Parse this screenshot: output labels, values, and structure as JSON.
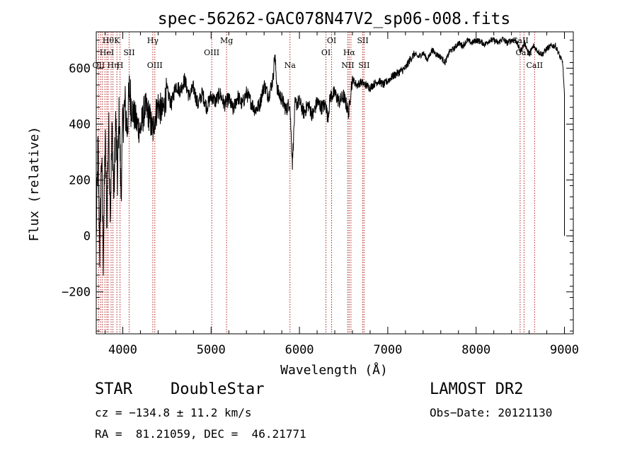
{
  "chart_data": {
    "type": "line",
    "title": "spec-56262-GAC078N47V2_sp06-008.fits",
    "xlabel": "Wavelength (Å)",
    "ylabel": "Flux (relative)",
    "xlim": [
      3700,
      9100
    ],
    "ylim": [
      -350,
      730
    ],
    "xticks": [
      4000,
      5000,
      6000,
      7000,
      8000,
      9000
    ],
    "yticks": [
      -200,
      0,
      200,
      400,
      600
    ],
    "xtick_labels": [
      "4000",
      "5000",
      "6000",
      "7000",
      "8000",
      "9000"
    ],
    "ytick_labels": [
      "−200",
      "0",
      "200",
      "400",
      "600"
    ],
    "grid": false,
    "series": [
      {
        "x": [
          3700,
          3720,
          3740,
          3760,
          3780,
          3800,
          3820,
          3840,
          3860,
          3880,
          3900,
          3920,
          3940,
          3960,
          3980,
          4000,
          4025,
          4050,
          4075,
          4100,
          4130,
          4160,
          4200,
          4250,
          4300,
          4340,
          4360,
          4400,
          4450,
          4500,
          4550,
          4600,
          4650,
          4700,
          4750,
          4800,
          4850,
          4900,
          4950,
          5000,
          5050,
          5100,
          5150,
          5200,
          5250,
          5300,
          5350,
          5400,
          5450,
          5500,
          5550,
          5600,
          5650,
          5700,
          5720,
          5750,
          5800,
          5850,
          5890,
          5920,
          5950,
          6000,
          6050,
          6100,
          6150,
          6200,
          6250,
          6300,
          6320,
          6350,
          6400,
          6450,
          6500,
          6530,
          6560,
          6580,
          6600,
          6650,
          6700,
          6750,
          6800,
          6850,
          6900,
          6950,
          7000,
          7050,
          7100,
          7150,
          7200,
          7250,
          7300,
          7350,
          7400,
          7450,
          7500,
          7550,
          7600,
          7650,
          7700,
          7750,
          7800,
          7850,
          7900,
          7950,
          8000,
          8050,
          8100,
          8150,
          8200,
          8250,
          8300,
          8350,
          8400,
          8450,
          8500,
          8550,
          8600,
          8650,
          8700,
          8750,
          8800,
          8850,
          8900,
          8950,
          8980,
          9000
        ],
        "y": [
          0,
          320,
          -60,
          300,
          -80,
          350,
          60,
          400,
          100,
          380,
          140,
          420,
          200,
          450,
          150,
          400,
          470,
          380,
          520,
          460,
          430,
          400,
          380,
          460,
          430,
          370,
          420,
          470,
          440,
          520,
          470,
          540,
          520,
          560,
          500,
          530,
          470,
          510,
          460,
          500,
          480,
          510,
          470,
          490,
          450,
          500,
          470,
          510,
          480,
          450,
          470,
          540,
          500,
          560,
          650,
          520,
          490,
          450,
          480,
          260,
          470,
          480,
          440,
          470,
          430,
          480,
          460,
          470,
          420,
          500,
          510,
          480,
          500,
          470,
          440,
          520,
          560,
          540,
          550,
          540,
          530,
          545,
          555,
          540,
          555,
          570,
          580,
          590,
          600,
          630,
          650,
          640,
          655,
          630,
          665,
          650,
          640,
          620,
          660,
          670,
          690,
          680,
          700,
          690,
          700,
          695,
          685,
          700,
          700,
          690,
          705,
          690,
          700,
          700,
          660,
          690,
          650,
          680,
          660,
          650,
          670,
          680,
          680,
          640,
          620,
          500
        ]
      }
    ],
    "lines": [
      {
        "wl": 3727,
        "label": "OII",
        "row": 2
      },
      {
        "wl": 3750,
        "label": "",
        "row": 0
      },
      {
        "wl": 3770,
        "label": "",
        "row": 0
      },
      {
        "wl": 3798,
        "label": "",
        "row": 0
      },
      {
        "wl": 3820,
        "label": "HeI",
        "row": 1
      },
      {
        "wl": 3835,
        "label": "Hθ",
        "row": 0
      },
      {
        "wl": 3868,
        "label": "",
        "row": 0
      },
      {
        "wl": 3889,
        "label": "Hη",
        "row": 2
      },
      {
        "wl": 3934,
        "label": "K",
        "row": 0
      },
      {
        "wl": 3969,
        "label": "H",
        "row": 2
      },
      {
        "wl": 4072,
        "label": "SII",
        "row": 1
      },
      {
        "wl": 4340,
        "label": "Hγ",
        "row": 0
      },
      {
        "wl": 4363,
        "label": "OIII",
        "row": 2
      },
      {
        "wl": 5007,
        "label": "OIII",
        "row": 1
      },
      {
        "wl": 5175,
        "label": "Mg",
        "row": 0
      },
      {
        "wl": 5893,
        "label": "Na",
        "row": 2
      },
      {
        "wl": 6300,
        "label": "OI",
        "row": 1
      },
      {
        "wl": 6364,
        "label": "OI",
        "row": 0
      },
      {
        "wl": 6548,
        "label": "NII",
        "row": 2
      },
      {
        "wl": 6563,
        "label": "Hα",
        "row": 1
      },
      {
        "wl": 6583,
        "label": "",
        "row": 0
      },
      {
        "wl": 6717,
        "label": "SII",
        "row": 0
      },
      {
        "wl": 6731,
        "label": "SII",
        "row": 2
      },
      {
        "wl": 8498,
        "label": "CaII",
        "row": 0
      },
      {
        "wl": 8542,
        "label": "CaII",
        "row": 1
      },
      {
        "wl": 8662,
        "label": "CaII",
        "row": 2
      }
    ]
  },
  "info": {
    "class_label": "STAR",
    "subclass_label": "DoubleStar",
    "survey_label": "LAMOST DR2",
    "cz_text": "cz = −134.8 ± 11.2 km/s",
    "obs_date_text": "Obs−Date: 20121130",
    "coords_text": "RA =  81.21059, DEC =  46.21771"
  }
}
